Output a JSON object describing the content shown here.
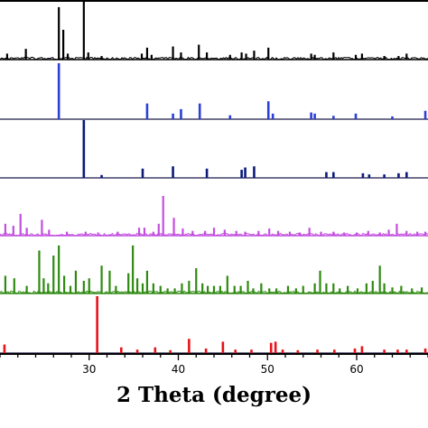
{
  "chart_data": {
    "type": "line",
    "xlabel": "2 Theta (degree)",
    "xlim": [
      20,
      68
    ],
    "xticks": [
      30,
      40,
      50,
      60
    ],
    "grid": false,
    "legend": "none",
    "panels": [
      {
        "color": "#000000",
        "style": "profile",
        "peaks": [
          [
            20.8,
            0.1
          ],
          [
            22.9,
            0.18
          ],
          [
            26.6,
            0.88
          ],
          [
            27.1,
            0.5
          ],
          [
            27.6,
            0.1
          ],
          [
            29.4,
            1.0
          ],
          [
            29.9,
            0.12
          ],
          [
            31.4,
            0.06
          ],
          [
            35.9,
            0.1
          ],
          [
            36.5,
            0.2
          ],
          [
            37.0,
            0.08
          ],
          [
            39.4,
            0.22
          ],
          [
            40.3,
            0.12
          ],
          [
            42.3,
            0.25
          ],
          [
            43.2,
            0.12
          ],
          [
            45.8,
            0.08
          ],
          [
            47.1,
            0.12
          ],
          [
            47.6,
            0.1
          ],
          [
            48.5,
            0.15
          ],
          [
            50.1,
            0.2
          ],
          [
            54.9,
            0.1
          ],
          [
            55.3,
            0.08
          ],
          [
            57.4,
            0.12
          ],
          [
            59.9,
            0.08
          ],
          [
            60.6,
            0.1
          ],
          [
            63.1,
            0.06
          ],
          [
            64.7,
            0.06
          ],
          [
            65.6,
            0.1
          ]
        ]
      },
      {
        "color": "#2c3fd6",
        "style": "sticks",
        "peaks": [
          [
            26.6,
            1.0
          ],
          [
            36.5,
            0.28
          ],
          [
            39.4,
            0.1
          ],
          [
            40.3,
            0.18
          ],
          [
            42.4,
            0.28
          ],
          [
            45.8,
            0.07
          ],
          [
            50.1,
            0.32
          ],
          [
            50.6,
            0.1
          ],
          [
            54.9,
            0.12
          ],
          [
            55.3,
            0.1
          ],
          [
            57.4,
            0.06
          ],
          [
            59.9,
            0.1
          ],
          [
            64.0,
            0.05
          ],
          [
            67.7,
            0.15
          ]
        ]
      },
      {
        "color": "#0a1a7a",
        "style": "sticks",
        "peaks": [
          [
            29.4,
            1.0
          ],
          [
            31.4,
            0.05
          ],
          [
            36.0,
            0.16
          ],
          [
            39.4,
            0.2
          ],
          [
            43.2,
            0.16
          ],
          [
            47.1,
            0.14
          ],
          [
            47.5,
            0.18
          ],
          [
            48.5,
            0.2
          ],
          [
            56.6,
            0.1
          ],
          [
            57.4,
            0.1
          ],
          [
            60.7,
            0.08
          ],
          [
            61.4,
            0.06
          ],
          [
            63.1,
            0.06
          ],
          [
            64.7,
            0.08
          ],
          [
            65.6,
            0.1
          ]
        ]
      },
      {
        "color": "#c34fe0",
        "style": "profile",
        "peaks": [
          [
            20.6,
            0.3
          ],
          [
            21.5,
            0.25
          ],
          [
            22.3,
            0.55
          ],
          [
            23.0,
            0.2
          ],
          [
            24.7,
            0.4
          ],
          [
            25.5,
            0.15
          ],
          [
            27.5,
            0.1
          ],
          [
            29.6,
            0.1
          ],
          [
            31.0,
            0.08
          ],
          [
            33.2,
            0.1
          ],
          [
            35.6,
            0.2
          ],
          [
            36.2,
            0.2
          ],
          [
            37.2,
            0.1
          ],
          [
            37.8,
            0.3
          ],
          [
            38.3,
            1.0
          ],
          [
            39.5,
            0.45
          ],
          [
            40.5,
            0.18
          ],
          [
            41.6,
            0.12
          ],
          [
            43.0,
            0.12
          ],
          [
            44.0,
            0.2
          ],
          [
            45.2,
            0.15
          ],
          [
            46.5,
            0.12
          ],
          [
            47.5,
            0.1
          ],
          [
            49.0,
            0.12
          ],
          [
            50.2,
            0.18
          ],
          [
            51.2,
            0.12
          ],
          [
            52.5,
            0.1
          ],
          [
            53.6,
            0.08
          ],
          [
            54.7,
            0.2
          ],
          [
            56.0,
            0.1
          ],
          [
            57.4,
            0.1
          ],
          [
            58.6,
            0.08
          ],
          [
            60.0,
            0.08
          ],
          [
            61.3,
            0.12
          ],
          [
            62.6,
            0.08
          ],
          [
            63.6,
            0.15
          ],
          [
            64.5,
            0.3
          ],
          [
            65.6,
            0.12
          ],
          [
            66.8,
            0.1
          ],
          [
            67.7,
            0.1
          ]
        ]
      },
      {
        "color": "#2f8a12",
        "style": "profile",
        "peaks": [
          [
            20.6,
            0.35
          ],
          [
            21.6,
            0.3
          ],
          [
            23.0,
            0.15
          ],
          [
            24.4,
            0.85
          ],
          [
            24.9,
            0.3
          ],
          [
            25.4,
            0.2
          ],
          [
            26.0,
            0.75
          ],
          [
            26.6,
            0.95
          ],
          [
            27.2,
            0.35
          ],
          [
            27.9,
            0.15
          ],
          [
            28.5,
            0.45
          ],
          [
            29.4,
            0.25
          ],
          [
            30.0,
            0.3
          ],
          [
            31.4,
            0.55
          ],
          [
            32.3,
            0.45
          ],
          [
            33.0,
            0.15
          ],
          [
            34.4,
            0.4
          ],
          [
            34.9,
            0.95
          ],
          [
            35.4,
            0.3
          ],
          [
            36.0,
            0.2
          ],
          [
            36.5,
            0.45
          ],
          [
            37.2,
            0.2
          ],
          [
            38.0,
            0.15
          ],
          [
            38.8,
            0.1
          ],
          [
            39.6,
            0.1
          ],
          [
            40.4,
            0.2
          ],
          [
            41.2,
            0.25
          ],
          [
            42.0,
            0.5
          ],
          [
            42.7,
            0.2
          ],
          [
            43.3,
            0.15
          ],
          [
            44.0,
            0.15
          ],
          [
            44.7,
            0.15
          ],
          [
            45.5,
            0.35
          ],
          [
            46.3,
            0.15
          ],
          [
            47.0,
            0.15
          ],
          [
            47.8,
            0.25
          ],
          [
            48.4,
            0.1
          ],
          [
            49.3,
            0.2
          ],
          [
            50.2,
            0.1
          ],
          [
            51.0,
            0.1
          ],
          [
            52.3,
            0.15
          ],
          [
            53.2,
            0.1
          ],
          [
            54.0,
            0.15
          ],
          [
            55.3,
            0.2
          ],
          [
            55.9,
            0.45
          ],
          [
            56.6,
            0.2
          ],
          [
            57.4,
            0.2
          ],
          [
            58.1,
            0.1
          ],
          [
            59.0,
            0.15
          ],
          [
            60.1,
            0.1
          ],
          [
            61.1,
            0.2
          ],
          [
            61.8,
            0.25
          ],
          [
            62.6,
            0.55
          ],
          [
            63.1,
            0.2
          ],
          [
            64.0,
            0.12
          ],
          [
            65.0,
            0.15
          ],
          [
            66.2,
            0.1
          ],
          [
            67.3,
            0.12
          ]
        ]
      },
      {
        "color": "#e8121a",
        "style": "sticks",
        "peaks": [
          [
            20.5,
            0.15
          ],
          [
            30.9,
            1.0
          ],
          [
            33.6,
            0.1
          ],
          [
            35.4,
            0.06
          ],
          [
            37.4,
            0.1
          ],
          [
            39.1,
            0.05
          ],
          [
            41.2,
            0.25
          ],
          [
            43.1,
            0.08
          ],
          [
            45.0,
            0.2
          ],
          [
            46.4,
            0.06
          ],
          [
            48.2,
            0.06
          ],
          [
            50.4,
            0.18
          ],
          [
            50.9,
            0.2
          ],
          [
            51.7,
            0.06
          ],
          [
            53.4,
            0.05
          ],
          [
            55.6,
            0.06
          ],
          [
            57.5,
            0.06
          ],
          [
            59.8,
            0.08
          ],
          [
            60.6,
            0.12
          ],
          [
            63.1,
            0.06
          ],
          [
            64.6,
            0.06
          ],
          [
            65.6,
            0.06
          ],
          [
            67.7,
            0.08
          ]
        ]
      }
    ]
  }
}
